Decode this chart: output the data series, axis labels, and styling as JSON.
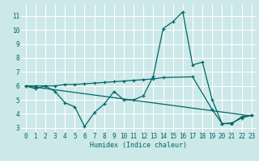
{
  "xlabel": "Humidex (Indice chaleur)",
  "xlim": [
    -0.5,
    23.5
  ],
  "ylim": [
    2.7,
    11.8
  ],
  "yticks": [
    3,
    4,
    5,
    6,
    7,
    8,
    9,
    10,
    11
  ],
  "xticks": [
    0,
    1,
    2,
    3,
    4,
    5,
    6,
    7,
    8,
    9,
    10,
    11,
    12,
    13,
    14,
    15,
    16,
    17,
    18,
    19,
    20,
    21,
    22,
    23
  ],
  "background_color": "#cce8e8",
  "grid_color": "#ffffff",
  "line_color": "#006666",
  "line1_x": [
    0,
    1,
    2,
    3,
    4,
    5,
    6,
    7,
    8,
    9,
    10,
    11,
    12,
    13,
    14,
    15,
    16,
    17,
    18,
    19,
    20,
    21,
    22,
    23
  ],
  "line1_y": [
    6.0,
    5.8,
    6.0,
    5.6,
    4.8,
    4.5,
    3.1,
    4.1,
    4.7,
    5.6,
    5.0,
    5.0,
    5.3,
    6.7,
    10.1,
    10.6,
    11.3,
    7.5,
    7.7,
    5.0,
    3.3,
    3.3,
    3.8,
    3.9
  ],
  "line2_x": [
    0,
    23
  ],
  "line2_y": [
    6.0,
    3.85
  ],
  "line3_x": [
    0,
    1,
    2,
    3,
    4,
    5,
    6,
    7,
    8,
    9,
    10,
    11,
    12,
    13,
    14,
    17,
    19,
    20,
    21,
    22,
    23
  ],
  "line3_y": [
    6.0,
    6.0,
    6.0,
    6.0,
    6.1,
    6.1,
    6.15,
    6.2,
    6.25,
    6.3,
    6.35,
    6.4,
    6.45,
    6.5,
    6.6,
    6.65,
    4.3,
    3.3,
    3.35,
    3.7,
    3.9
  ]
}
